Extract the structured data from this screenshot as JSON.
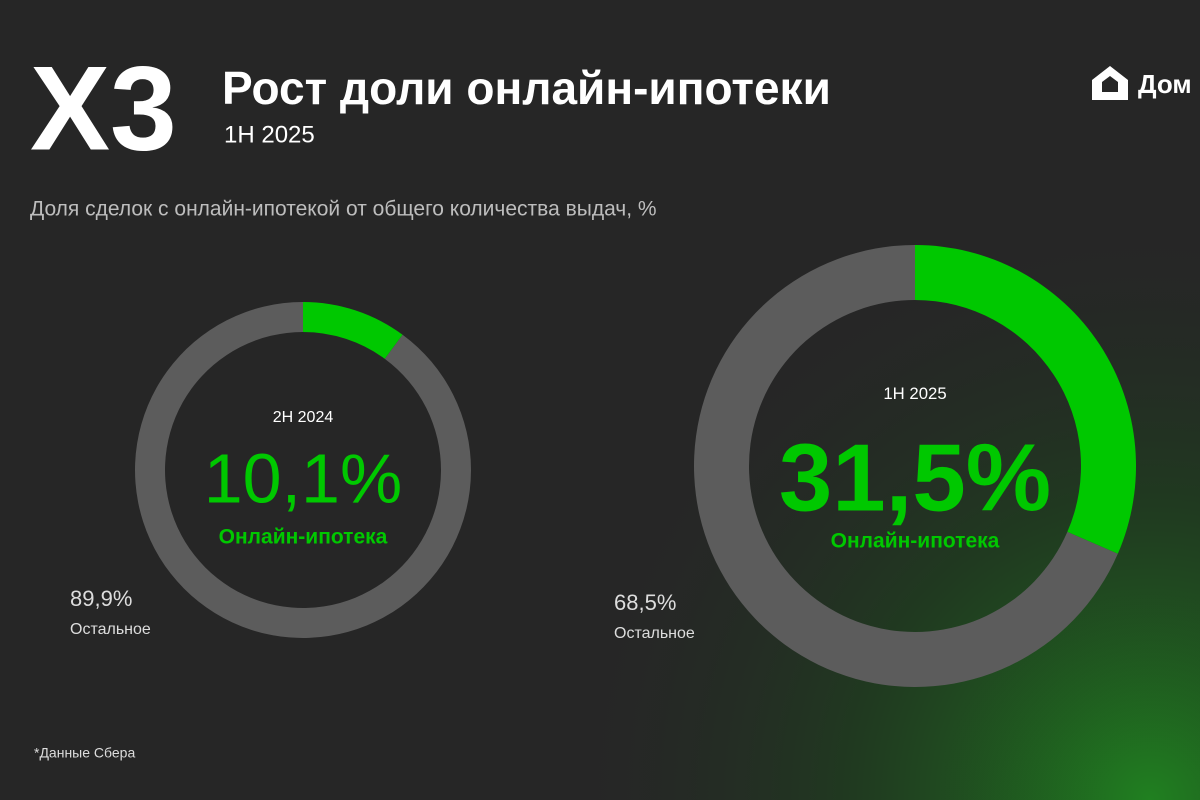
{
  "header": {
    "multiplier": "X3",
    "title": "Рост доли онлайн-ипотеки",
    "period": "1H 2025",
    "subtitle": "Доля сделок с онлайн-ипотекой от общего количества выдач, %",
    "logo": "Дом"
  },
  "footnote": "*Данные Сбера",
  "chart_data": [
    {
      "type": "donut",
      "title": "2H 2024",
      "categories": [
        "Онлайн-ипотека",
        "Остальное"
      ],
      "values": [
        10.1,
        89.9
      ],
      "value_labels": [
        "10,1%",
        "89,9%"
      ],
      "colors": [
        "#00c800",
        "#5c5c5c"
      ]
    },
    {
      "type": "donut",
      "title": "1H 2025",
      "categories": [
        "Онлайн-ипотека",
        "Остальное"
      ],
      "values": [
        31.5,
        68.5
      ],
      "value_labels": [
        "31,5%",
        "68,5%"
      ],
      "colors": [
        "#00c800",
        "#5c5c5c"
      ]
    }
  ]
}
